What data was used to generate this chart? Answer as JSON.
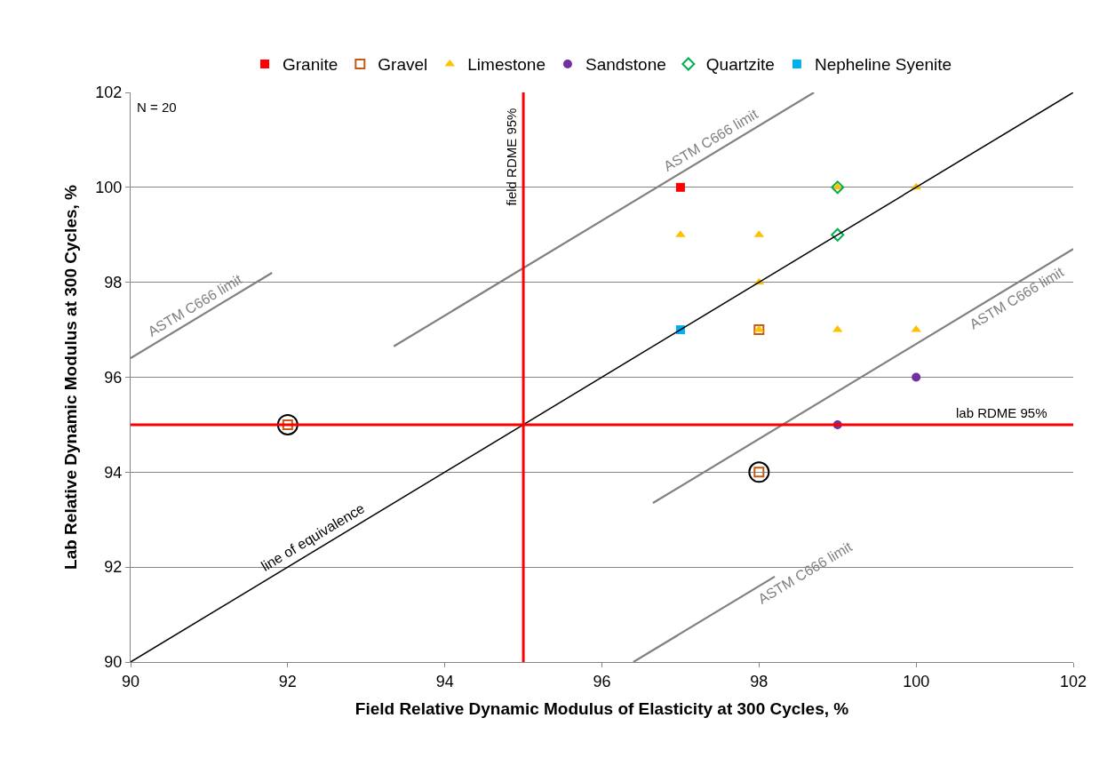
{
  "chart_data": {
    "type": "scatter",
    "xlabel": "Field Relative Dynamic Modulus of Elasticity at 300 Cycles, %",
    "ylabel": "Lab Relative Dynamic Modulus at 300 Cycles, %",
    "xlim": [
      90,
      102
    ],
    "xticks": [
      90,
      92,
      94,
      96,
      98,
      100,
      102
    ],
    "ylim": [
      90,
      102
    ],
    "yticks": [
      90,
      92,
      94,
      96,
      98,
      100,
      102
    ],
    "grid": "y",
    "legend": "top",
    "series": [
      {
        "name": "Granite",
        "color": "#ff0000",
        "marker": "square",
        "x": [
          97
        ],
        "values": [
          100
        ]
      },
      {
        "name": "Gravel",
        "color": "#c55a11",
        "marker": "square-open",
        "x": [
          98,
          92,
          98
        ],
        "values": [
          97,
          95,
          94
        ]
      },
      {
        "name": "Limestone",
        "color": "#ffc000",
        "marker": "triangle",
        "x": [
          97,
          98,
          98,
          98,
          99,
          100,
          99,
          100
        ],
        "values": [
          99,
          99,
          98,
          97,
          100,
          100,
          97,
          97
        ]
      },
      {
        "name": "Sandstone",
        "color": "#7030a0",
        "marker": "circle",
        "x": [
          100,
          99
        ],
        "values": [
          96,
          95
        ]
      },
      {
        "name": "Quartzite",
        "color": "#00b050",
        "marker": "diamond-open",
        "x": [
          99,
          99
        ],
        "values": [
          100,
          99
        ]
      },
      {
        "name": "Nepheline Syenite",
        "color": "#00b0f0",
        "marker": "square",
        "x": [
          97
        ],
        "values": [
          97
        ]
      },
      {
        "type": "scatter",
        "color": "#000000",
        "marker": "circle-open",
        "x": [
          92,
          98
        ],
        "values": [
          95,
          94
        ]
      },
      {
        "type": "line",
        "name": "line of equivalence",
        "color": "#000000",
        "marker": "none",
        "x": [
          90,
          102
        ],
        "values": [
          90,
          102
        ]
      },
      {
        "type": "line",
        "name": "ASTM C666 limit",
        "color": "#808080",
        "marker": "none",
        "x": [
          93.35,
          98.7
        ],
        "values": [
          96.65,
          102
        ]
      },
      {
        "type": "line",
        "name": "ASTM C666 limit",
        "color": "#808080",
        "marker": "none",
        "x": [
          90,
          91.8
        ],
        "values": [
          96.4,
          98.2
        ]
      },
      {
        "type": "line",
        "name": "ASTM C666 limit",
        "color": "#808080",
        "marker": "none",
        "x": [
          96.65,
          102
        ],
        "values": [
          93.35,
          98.7
        ]
      },
      {
        "type": "line",
        "name": "ASTM C666 limit",
        "color": "#808080",
        "marker": "none",
        "x": [
          96.4,
          98.2
        ],
        "values": [
          90,
          91.8
        ]
      }
    ],
    "ref_lines": [
      {
        "axis": "x",
        "value": 95,
        "label": "field RDME 95%",
        "color": "#ff0000"
      },
      {
        "axis": "y",
        "value": 95,
        "label": "lab RDME 95%",
        "color": "#ff0000"
      }
    ],
    "annotations": [
      "N = 20"
    ]
  }
}
